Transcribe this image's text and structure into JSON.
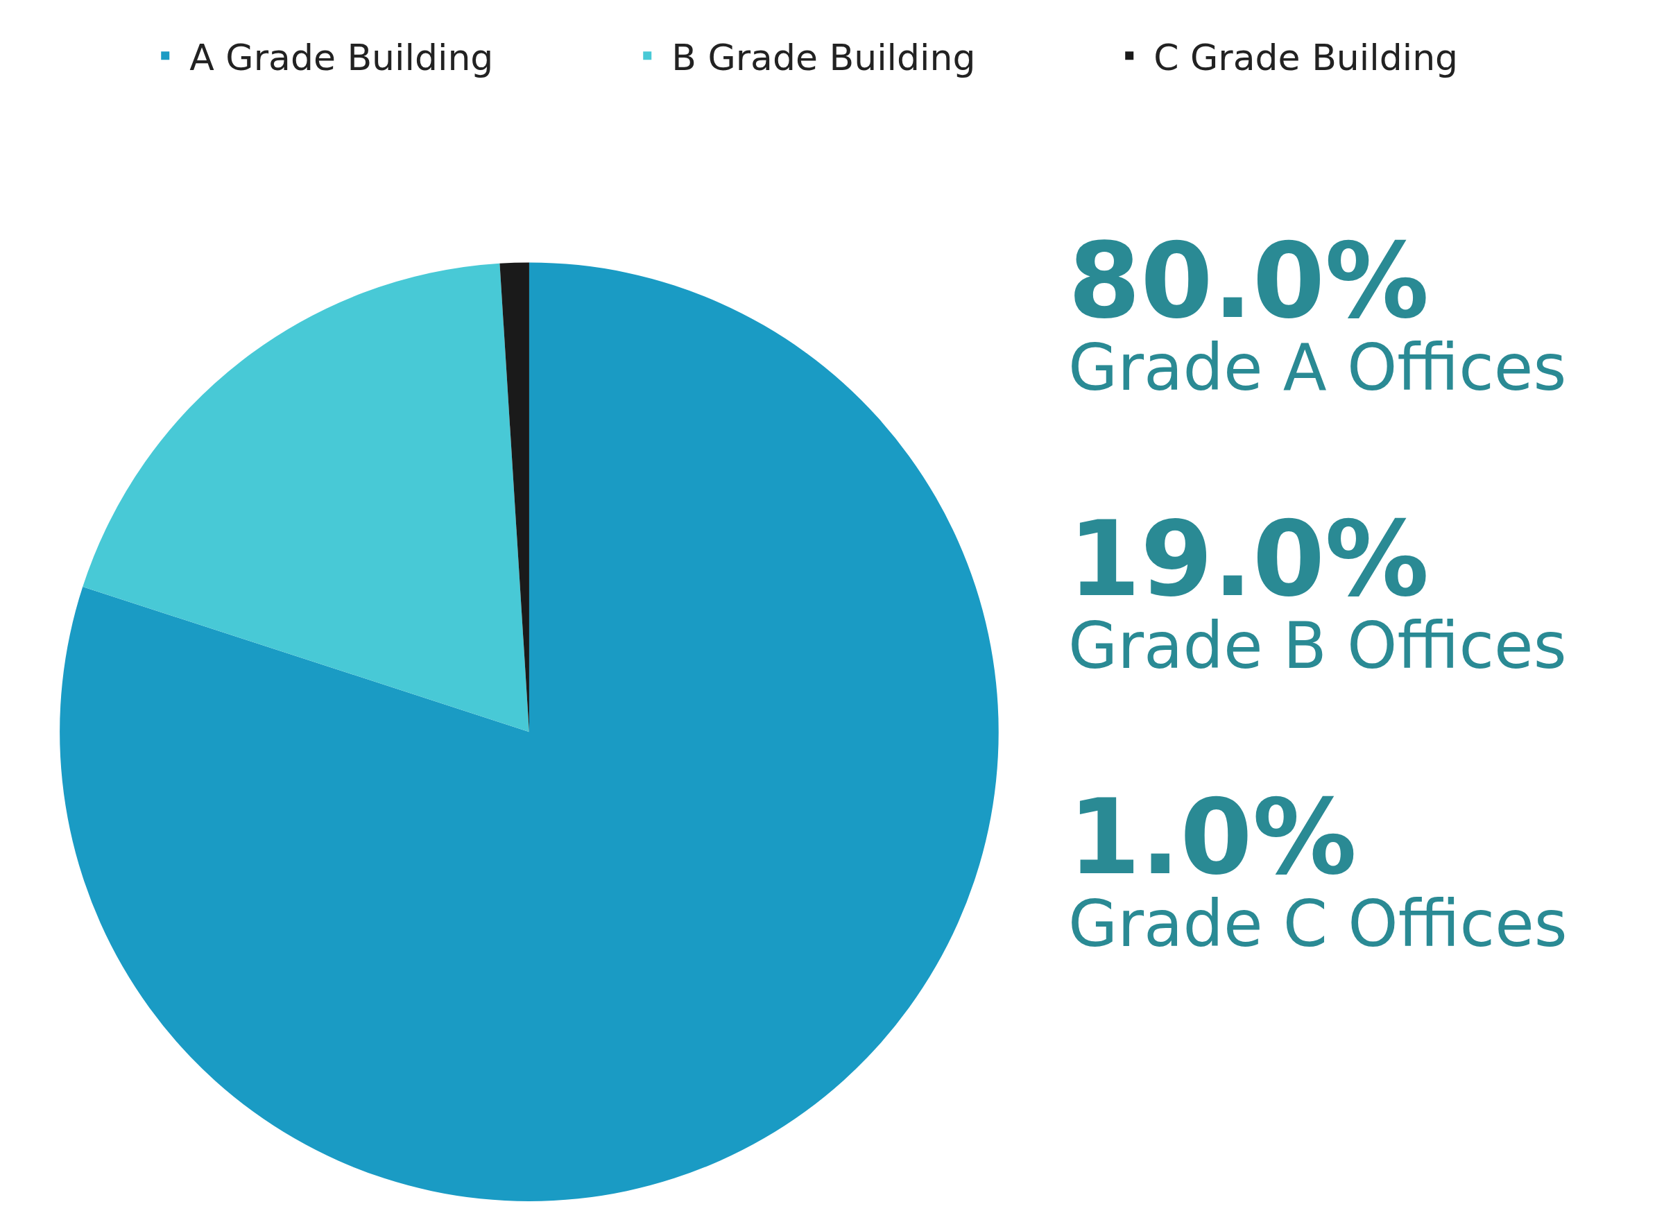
{
  "chart_data": {
    "type": "pie",
    "categories": [
      "A Grade Building",
      "B Grade Building",
      "C Grade Building"
    ],
    "values": [
      80,
      19,
      1
    ],
    "colors": [
      "#1a9bc4",
      "#48c9d6",
      "#1a1a1a"
    ],
    "annotations": [
      "80.0%",
      "Grade A Offices",
      "19.0%",
      "Grade B Offices",
      "1.0%",
      "Grade C Offices"
    ],
    "legend": "top"
  }
}
